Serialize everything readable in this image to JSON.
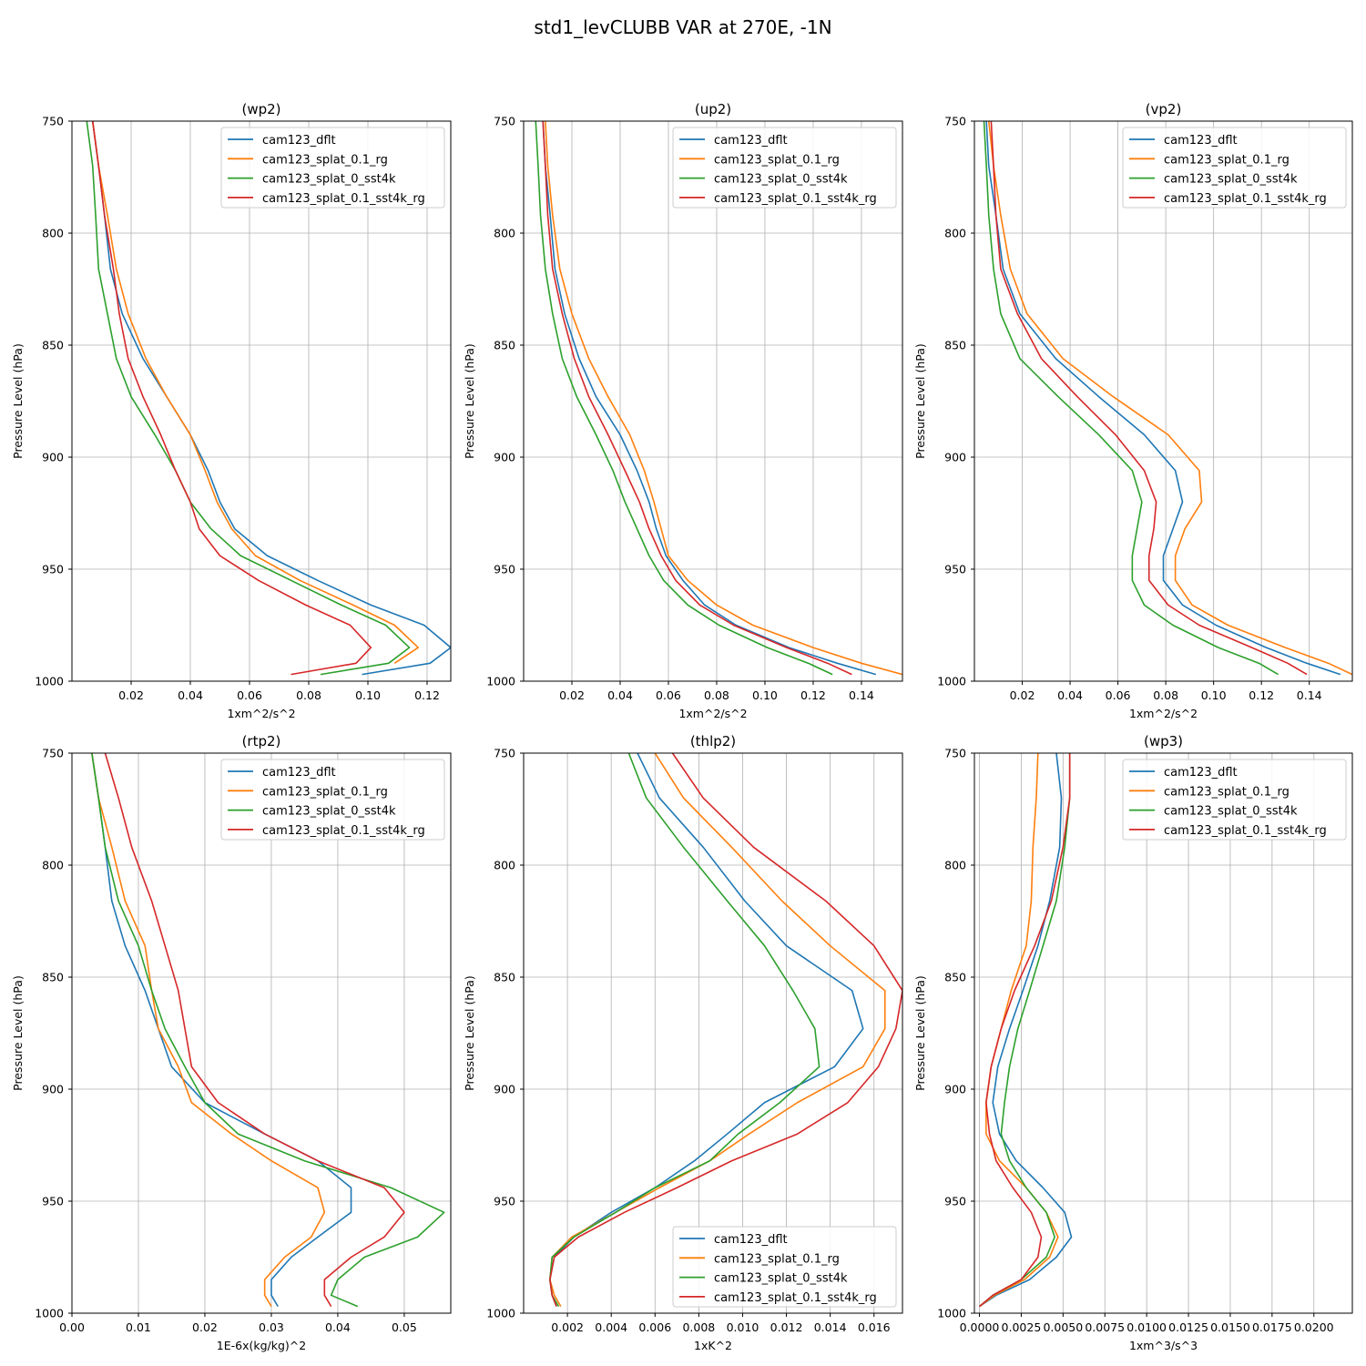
{
  "figure": {
    "title": "std1_levCLUBB VAR at 270E, -1N"
  },
  "series_colors": {
    "cam123_dflt": "#1f77b4",
    "cam123_splat_0.1_rg": "#ff7f0e",
    "cam123_splat_0_sst4k": "#2ca02c",
    "cam123_splat_0.1_sst4k_rg": "#d62728"
  },
  "chart_data": [
    {
      "type": "line",
      "title": "(wp2)",
      "xlabel": "1xm^2/s^2",
      "ylabel": "Pressure Level (hPa)",
      "xlim": [
        0.0,
        0.128
      ],
      "ylim": [
        1000,
        750
      ],
      "xticks": [
        0.02,
        0.04,
        0.06,
        0.08,
        0.1,
        0.12
      ],
      "xtick_labels": [
        "0.02",
        "0.04",
        "0.06",
        "0.08",
        "0.10",
        "0.12"
      ],
      "yticks": [
        750,
        800,
        850,
        900,
        950,
        1000
      ],
      "legend_loc": "upper-right",
      "levels": [
        750,
        770,
        792,
        816,
        836,
        856,
        873,
        890,
        906,
        920,
        932,
        944,
        955,
        966,
        975,
        985,
        992,
        997
      ],
      "series": [
        {
          "name": "cam123_dflt",
          "values": [
            0.007,
            0.009,
            0.011,
            0.013,
            0.017,
            0.024,
            0.032,
            0.04,
            0.046,
            0.05,
            0.055,
            0.066,
            0.083,
            0.101,
            0.119,
            0.128,
            0.121,
            0.098
          ]
        },
        {
          "name": "cam123_splat_0.1_rg",
          "values": [
            0.007,
            0.009,
            0.012,
            0.015,
            0.019,
            0.025,
            0.032,
            0.04,
            0.045,
            0.049,
            0.054,
            0.062,
            0.077,
            0.095,
            0.109,
            0.117,
            0.109,
            null
          ]
        },
        {
          "name": "cam123_splat_0_sst4k",
          "values": [
            0.005,
            0.007,
            0.008,
            0.009,
            0.012,
            0.015,
            0.02,
            0.028,
            0.035,
            0.04,
            0.047,
            0.057,
            0.074,
            0.091,
            0.106,
            0.114,
            0.107,
            0.084
          ]
        },
        {
          "name": "cam123_splat_0.1_sst4k_rg",
          "values": [
            0.007,
            0.009,
            0.011,
            0.014,
            0.016,
            0.019,
            0.024,
            0.03,
            0.035,
            0.04,
            0.043,
            0.05,
            0.063,
            0.079,
            0.094,
            0.101,
            0.096,
            0.074
          ]
        }
      ]
    },
    {
      "type": "line",
      "title": "(up2)",
      "xlabel": "1xm^2/s^2",
      "ylabel": "Pressure Level (hPa)",
      "xlim": [
        0.0,
        0.157
      ],
      "ylim": [
        1000,
        750
      ],
      "xticks": [
        0.02,
        0.04,
        0.06,
        0.08,
        0.1,
        0.12,
        0.14
      ],
      "xtick_labels": [
        "0.02",
        "0.04",
        "0.06",
        "0.08",
        "0.10",
        "0.12",
        "0.14"
      ],
      "yticks": [
        750,
        800,
        850,
        900,
        950,
        1000
      ],
      "legend_loc": "upper-right",
      "levels": [
        750,
        770,
        792,
        816,
        836,
        856,
        873,
        890,
        906,
        920,
        932,
        944,
        955,
        966,
        975,
        985,
        992,
        997
      ],
      "series": [
        {
          "name": "cam123_dflt",
          "values": [
            0.008,
            0.009,
            0.011,
            0.013,
            0.017,
            0.023,
            0.03,
            0.04,
            0.047,
            0.052,
            0.055,
            0.059,
            0.066,
            0.075,
            0.088,
            0.11,
            0.13,
            0.146
          ]
        },
        {
          "name": "cam123_splat_0.1_rg",
          "values": [
            0.009,
            0.01,
            0.012,
            0.015,
            0.02,
            0.027,
            0.035,
            0.044,
            0.05,
            0.054,
            0.057,
            0.06,
            0.068,
            0.08,
            0.095,
            0.12,
            0.14,
            0.157
          ]
        },
        {
          "name": "cam123_splat_0_sst4k",
          "values": [
            0.005,
            0.006,
            0.007,
            0.009,
            0.012,
            0.016,
            0.022,
            0.03,
            0.037,
            0.042,
            0.047,
            0.052,
            0.058,
            0.068,
            0.081,
            0.101,
            0.118,
            0.128
          ]
        },
        {
          "name": "cam123_splat_0.1_sst4k_rg",
          "values": [
            0.008,
            0.009,
            0.01,
            0.012,
            0.016,
            0.021,
            0.027,
            0.035,
            0.042,
            0.048,
            0.052,
            0.057,
            0.063,
            0.073,
            0.087,
            0.109,
            0.126,
            0.136
          ]
        }
      ]
    },
    {
      "type": "line",
      "title": "(vp2)",
      "xlabel": "1xm^2/s^2",
      "ylabel": "Pressure Level (hPa)",
      "xlim": [
        0.0,
        0.158
      ],
      "ylim": [
        1000,
        750
      ],
      "xticks": [
        0.02,
        0.04,
        0.06,
        0.08,
        0.1,
        0.12,
        0.14
      ],
      "xtick_labels": [
        "0.02",
        "0.04",
        "0.06",
        "0.08",
        "0.10",
        "0.12",
        "0.14"
      ],
      "yticks": [
        750,
        800,
        850,
        900,
        950,
        1000
      ],
      "legend_loc": "upper-right",
      "levels": [
        750,
        770,
        792,
        816,
        836,
        856,
        873,
        890,
        906,
        920,
        932,
        944,
        955,
        966,
        975,
        985,
        992,
        997
      ],
      "series": [
        {
          "name": "cam123_dflt",
          "values": [
            0.005,
            0.006,
            0.009,
            0.012,
            0.019,
            0.034,
            0.052,
            0.071,
            0.084,
            0.087,
            0.083,
            0.079,
            0.079,
            0.087,
            0.101,
            0.122,
            0.139,
            0.153
          ]
        },
        {
          "name": "cam123_splat_0.1_rg",
          "values": [
            0.006,
            0.008,
            0.011,
            0.015,
            0.022,
            0.037,
            0.058,
            0.081,
            0.094,
            0.095,
            0.088,
            0.084,
            0.084,
            0.091,
            0.106,
            0.13,
            0.148,
            0.158
          ]
        },
        {
          "name": "cam123_splat_0_sst4k",
          "values": [
            0.004,
            0.005,
            0.006,
            0.008,
            0.011,
            0.019,
            0.035,
            0.052,
            0.066,
            0.07,
            0.068,
            0.066,
            0.066,
            0.071,
            0.083,
            0.102,
            0.119,
            0.127
          ]
        },
        {
          "name": "cam123_splat_0.1_sst4k_rg",
          "values": [
            0.007,
            0.008,
            0.009,
            0.011,
            0.018,
            0.028,
            0.043,
            0.059,
            0.071,
            0.076,
            0.075,
            0.073,
            0.073,
            0.081,
            0.094,
            0.116,
            0.131,
            0.139
          ]
        }
      ]
    },
    {
      "type": "line",
      "title": "(rtp2)",
      "xlabel": "1E-6x(kg/kg)^2",
      "ylabel": "Pressure Level (hPa)",
      "xlim": [
        0.0,
        0.057
      ],
      "ylim": [
        1000,
        750
      ],
      "xticks": [
        0.0,
        0.01,
        0.02,
        0.03,
        0.04,
        0.05
      ],
      "xtick_labels": [
        "0.00",
        "0.01",
        "0.02",
        "0.03",
        "0.04",
        "0.05"
      ],
      "yticks": [
        750,
        800,
        850,
        900,
        950,
        1000
      ],
      "legend_loc": "upper-right",
      "levels": [
        750,
        770,
        792,
        816,
        836,
        856,
        873,
        890,
        906,
        920,
        932,
        944,
        955,
        966,
        975,
        985,
        992,
        997
      ],
      "series": [
        {
          "name": "cam123_dflt",
          "values": [
            0.003,
            0.004,
            0.005,
            0.006,
            0.008,
            0.011,
            0.013,
            0.015,
            0.02,
            0.029,
            0.037,
            0.042,
            0.042,
            0.037,
            0.033,
            0.03,
            0.03,
            0.031
          ]
        },
        {
          "name": "cam123_splat_0.1_rg",
          "values": [
            0.003,
            0.004,
            0.006,
            0.008,
            0.011,
            0.012,
            0.013,
            0.016,
            0.018,
            0.024,
            0.03,
            0.037,
            0.038,
            0.036,
            0.032,
            0.029,
            0.029,
            0.03
          ]
        },
        {
          "name": "cam123_splat_0_sst4k",
          "values": [
            0.003,
            0.004,
            0.005,
            0.007,
            0.01,
            0.012,
            0.014,
            0.017,
            0.02,
            0.025,
            0.035,
            0.048,
            0.056,
            0.052,
            0.044,
            0.04,
            0.039,
            0.043
          ]
        },
        {
          "name": "cam123_splat_0.1_sst4k_rg",
          "values": [
            0.005,
            0.007,
            0.009,
            0.012,
            0.014,
            0.016,
            0.017,
            0.018,
            0.022,
            0.029,
            0.037,
            0.047,
            0.05,
            0.047,
            0.042,
            0.038,
            0.038,
            0.039
          ]
        }
      ]
    },
    {
      "type": "line",
      "title": "(thlp2)",
      "xlabel": "1xK^2",
      "ylabel": "Pressure Level (hPa)",
      "xlim": [
        0.0,
        0.0173
      ],
      "ylim": [
        1000,
        750
      ],
      "xticks": [
        0.002,
        0.004,
        0.006,
        0.008,
        0.01,
        0.012,
        0.014,
        0.016
      ],
      "xtick_labels": [
        "0.002",
        "0.004",
        "0.006",
        "0.008",
        "0.010",
        "0.012",
        "0.014",
        "0.016"
      ],
      "yticks": [
        750,
        800,
        850,
        900,
        950,
        1000
      ],
      "legend_loc": "lower-right",
      "levels": [
        750,
        770,
        792,
        816,
        836,
        856,
        873,
        890,
        906,
        920,
        932,
        944,
        955,
        966,
        975,
        985,
        992,
        997
      ],
      "series": [
        {
          "name": "cam123_dflt",
          "values": [
            0.0052,
            0.0062,
            0.0082,
            0.0101,
            0.012,
            0.015,
            0.0155,
            0.0142,
            0.011,
            0.0093,
            0.0078,
            0.006,
            0.004,
            0.0023,
            0.0014,
            0.0012,
            0.0013,
            0.0015
          ]
        },
        {
          "name": "cam123_splat_0.1_rg",
          "values": [
            0.006,
            0.0073,
            0.0095,
            0.0118,
            0.014,
            0.0165,
            0.0165,
            0.0155,
            0.0125,
            0.0103,
            0.0085,
            0.0062,
            0.0042,
            0.0022,
            0.0013,
            0.0012,
            0.0014,
            0.0017
          ]
        },
        {
          "name": "cam123_splat_0_sst4k",
          "values": [
            0.0048,
            0.0056,
            0.0073,
            0.0093,
            0.011,
            0.0123,
            0.0133,
            0.0135,
            0.0117,
            0.0098,
            0.0085,
            0.006,
            0.0042,
            0.0023,
            0.0013,
            0.0012,
            0.0013,
            0.0016
          ]
        },
        {
          "name": "cam123_splat_0.1_sst4k_rg",
          "values": [
            0.0068,
            0.0082,
            0.0105,
            0.0138,
            0.016,
            0.0173,
            0.017,
            0.0162,
            0.0148,
            0.0125,
            0.0095,
            0.007,
            0.0046,
            0.0025,
            0.0014,
            0.0012,
            0.0013,
            0.0015
          ]
        }
      ]
    },
    {
      "type": "line",
      "title": "(wp3)",
      "xlabel": "1xm^3/s^3",
      "ylabel": "Pressure Level (hPa)",
      "xlim": [
        -0.0003,
        0.0223
      ],
      "ylim": [
        1000,
        750
      ],
      "xticks": [
        0.0,
        0.0025,
        0.005,
        0.0075,
        0.01,
        0.0125,
        0.015,
        0.0175,
        0.02
      ],
      "xtick_labels": [
        "0.0000",
        "0.0025",
        "0.0050",
        "0.0075",
        "0.0100",
        "0.0125",
        "0.0150",
        "0.0175",
        "0.0200"
      ],
      "yticks": [
        750,
        800,
        850,
        900,
        950,
        1000
      ],
      "legend_loc": "upper-right",
      "levels": [
        750,
        770,
        792,
        816,
        836,
        856,
        873,
        890,
        906,
        920,
        932,
        944,
        955,
        966,
        975,
        985,
        992,
        997
      ],
      "series": [
        {
          "name": "cam123_dflt",
          "values": [
            0.0046,
            0.0049,
            0.0048,
            0.0042,
            0.0035,
            0.0026,
            0.0018,
            0.0011,
            0.0008,
            0.0012,
            0.0022,
            0.0038,
            0.0051,
            0.0055,
            0.0046,
            0.003,
            0.001,
            0.0
          ]
        },
        {
          "name": "cam123_splat_0.1_rg",
          "values": [
            0.0035,
            0.0034,
            0.0032,
            0.0031,
            0.0028,
            0.0019,
            0.0013,
            0.0007,
            0.0004,
            0.0004,
            0.0012,
            0.0028,
            0.004,
            0.0047,
            0.0042,
            0.0027,
            0.0009,
            0.0
          ]
        },
        {
          "name": "cam123_splat_0_sst4k",
          "values": [
            0.0054,
            0.0054,
            0.0051,
            0.0046,
            0.0038,
            0.003,
            0.0023,
            0.0018,
            0.0015,
            0.0013,
            0.0018,
            0.0028,
            0.004,
            0.0045,
            0.004,
            0.0025,
            0.0008,
            0.0
          ]
        },
        {
          "name": "cam123_splat_0.1_sst4k_rg",
          "values": [
            0.0054,
            0.0054,
            0.005,
            0.0043,
            0.0033,
            0.0021,
            0.0013,
            0.0007,
            0.0004,
            0.0006,
            0.001,
            0.002,
            0.0031,
            0.0037,
            0.0035,
            0.0025,
            0.0008,
            0.0
          ]
        }
      ]
    }
  ]
}
